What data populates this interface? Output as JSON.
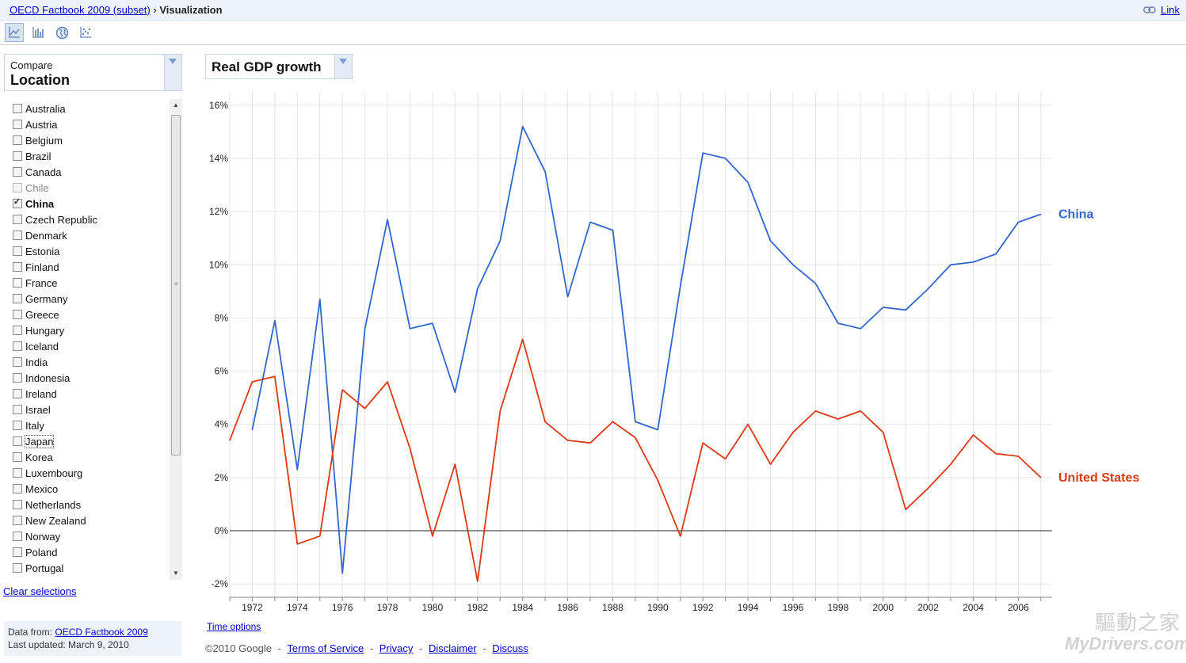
{
  "breadcrumb": {
    "root": "OECD Factbook 2009 (subset)",
    "separator": "›",
    "current": "Visualization"
  },
  "top_link": {
    "label": "Link",
    "icon": "chain-link-icon"
  },
  "toolbar": {
    "buttons": [
      {
        "name": "line-chart-icon",
        "active": true
      },
      {
        "name": "bar-chart-icon",
        "active": false
      },
      {
        "name": "globe-map-icon",
        "active": false
      },
      {
        "name": "scatter-chart-icon",
        "active": false
      }
    ]
  },
  "compare": {
    "caption": "Compare",
    "value": "Location"
  },
  "locations": [
    {
      "label": "Australia",
      "checked": false,
      "disabled": false
    },
    {
      "label": "Austria",
      "checked": false,
      "disabled": false
    },
    {
      "label": "Belgium",
      "checked": false,
      "disabled": false
    },
    {
      "label": "Brazil",
      "checked": false,
      "disabled": false
    },
    {
      "label": "Canada",
      "checked": false,
      "disabled": false
    },
    {
      "label": "Chile",
      "checked": false,
      "disabled": true
    },
    {
      "label": "China",
      "checked": true,
      "disabled": false
    },
    {
      "label": "Czech Republic",
      "checked": false,
      "disabled": false
    },
    {
      "label": "Denmark",
      "checked": false,
      "disabled": false
    },
    {
      "label": "Estonia",
      "checked": false,
      "disabled": false
    },
    {
      "label": "Finland",
      "checked": false,
      "disabled": false
    },
    {
      "label": "France",
      "checked": false,
      "disabled": false
    },
    {
      "label": "Germany",
      "checked": false,
      "disabled": false
    },
    {
      "label": "Greece",
      "checked": false,
      "disabled": false
    },
    {
      "label": "Hungary",
      "checked": false,
      "disabled": false
    },
    {
      "label": "Iceland",
      "checked": false,
      "disabled": false
    },
    {
      "label": "India",
      "checked": false,
      "disabled": false
    },
    {
      "label": "Indonesia",
      "checked": false,
      "disabled": false
    },
    {
      "label": "Ireland",
      "checked": false,
      "disabled": false
    },
    {
      "label": "Israel",
      "checked": false,
      "disabled": false
    },
    {
      "label": "Italy",
      "checked": false,
      "disabled": false
    },
    {
      "label": "Japan",
      "checked": false,
      "disabled": false,
      "focused": true
    },
    {
      "label": "Korea",
      "checked": false,
      "disabled": false
    },
    {
      "label": "Luxembourg",
      "checked": false,
      "disabled": false
    },
    {
      "label": "Mexico",
      "checked": false,
      "disabled": false
    },
    {
      "label": "Netherlands",
      "checked": false,
      "disabled": false
    },
    {
      "label": "New Zealand",
      "checked": false,
      "disabled": false
    },
    {
      "label": "Norway",
      "checked": false,
      "disabled": false
    },
    {
      "label": "Poland",
      "checked": false,
      "disabled": false
    },
    {
      "label": "Portugal",
      "checked": false,
      "disabled": false
    }
  ],
  "clear_selections": "Clear selections",
  "data_info": {
    "from_label": "Data from:",
    "from_link": "OECD Factbook 2009",
    "updated": "Last updated: March 9, 2010"
  },
  "metric": {
    "value": "Real GDP growth"
  },
  "time_options": "Time options",
  "footer": {
    "copyright": "©2010 Google",
    "links": [
      "Terms of Service",
      "Privacy",
      "Disclaimer",
      "Discuss"
    ],
    "separator": "-"
  },
  "watermark": {
    "text": "驅動之家",
    "site": "MyDrivers.com"
  },
  "chart_data": {
    "type": "line",
    "title": "Real GDP growth",
    "xlabel": "",
    "ylabel": "",
    "xlim": [
      1971,
      2007.5
    ],
    "ylim": [
      -2.5,
      16.5
    ],
    "yticks": [
      -2,
      0,
      2,
      4,
      6,
      8,
      10,
      12,
      14,
      16
    ],
    "ytick_labels": [
      "-2%",
      "0%",
      "2%",
      "4%",
      "6%",
      "8%",
      "10%",
      "12%",
      "14%",
      "16%"
    ],
    "xticks": [
      1972,
      1974,
      1976,
      1978,
      1980,
      1982,
      1984,
      1986,
      1988,
      1990,
      1992,
      1994,
      1996,
      1998,
      2000,
      2002,
      2004,
      2006
    ],
    "xtick_labels": [
      "1972",
      "1974",
      "1976",
      "1978",
      "1980",
      "1982",
      "1984",
      "1986",
      "1988",
      "1990",
      "1992",
      "1994",
      "1996",
      "1998",
      "2000",
      "2002",
      "2004",
      "2006"
    ],
    "grid": true,
    "series": [
      {
        "name": "China",
        "color": "#3366cc",
        "x": [
          1972,
          1973,
          1974,
          1975,
          1976,
          1977,
          1978,
          1979,
          1980,
          1981,
          1982,
          1983,
          1984,
          1985,
          1986,
          1987,
          1988,
          1989,
          1990,
          1991,
          1992,
          1993,
          1994,
          1995,
          1996,
          1997,
          1998,
          1999,
          2000,
          2001,
          2002,
          2003,
          2004,
          2005,
          2006,
          2007
        ],
        "values": [
          3.8,
          7.9,
          2.3,
          8.7,
          -1.6,
          7.6,
          11.7,
          7.6,
          7.8,
          5.2,
          9.1,
          10.9,
          15.2,
          13.5,
          8.8,
          11.6,
          11.3,
          4.1,
          3.8,
          9.2,
          14.2,
          14.0,
          13.1,
          10.9,
          10.0,
          9.3,
          7.8,
          7.6,
          8.4,
          8.3,
          9.1,
          10.0,
          10.1,
          10.4,
          11.6,
          11.9
        ]
      },
      {
        "name": "United States",
        "color": "#dc3912",
        "x": [
          1971,
          1972,
          1973,
          1974,
          1975,
          1976,
          1977,
          1978,
          1979,
          1980,
          1981,
          1982,
          1983,
          1984,
          1985,
          1986,
          1987,
          1988,
          1989,
          1990,
          1991,
          1992,
          1993,
          1994,
          1995,
          1996,
          1997,
          1998,
          1999,
          2000,
          2001,
          2002,
          2003,
          2004,
          2005,
          2006,
          2007
        ],
        "values": [
          3.4,
          5.6,
          5.8,
          -0.5,
          -0.2,
          5.3,
          4.6,
          5.6,
          3.1,
          -0.2,
          2.5,
          -1.9,
          4.5,
          7.2,
          4.1,
          3.4,
          3.3,
          4.1,
          3.5,
          1.9,
          -0.2,
          3.3,
          2.7,
          4.0,
          2.5,
          3.7,
          4.5,
          4.2,
          4.5,
          3.7,
          0.8,
          1.6,
          2.5,
          3.6,
          2.9,
          2.8,
          2.0
        ]
      }
    ]
  }
}
